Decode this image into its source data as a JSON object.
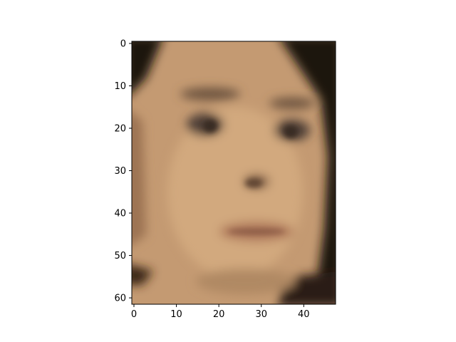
{
  "chart_data": {
    "type": "heatmap",
    "content": "face-photo",
    "image_pixel_grid": {
      "columns": 48,
      "rows": 62
    },
    "x_axis": {
      "lim": [
        -0.5,
        47.5
      ],
      "ticks": [
        0,
        10,
        20,
        30,
        40
      ],
      "tick_labels": [
        "0",
        "10",
        "20",
        "30",
        "40"
      ]
    },
    "y_axis": {
      "lim": [
        61.5,
        -0.5
      ],
      "inverted": true,
      "ticks": [
        0,
        10,
        20,
        30,
        40,
        50,
        60
      ],
      "tick_labels": [
        "0",
        "10",
        "20",
        "30",
        "40",
        "50",
        "60"
      ]
    },
    "colors": {
      "background": "#ffffff",
      "skin": "#c49a72",
      "skin_light": "#d2a97e",
      "skin_shadow": "#9c7352",
      "hair": "#1f140c",
      "eye": "#4f4137",
      "brow": "#6e5440",
      "lip": "#b07a5c",
      "axis": "#000000"
    }
  }
}
